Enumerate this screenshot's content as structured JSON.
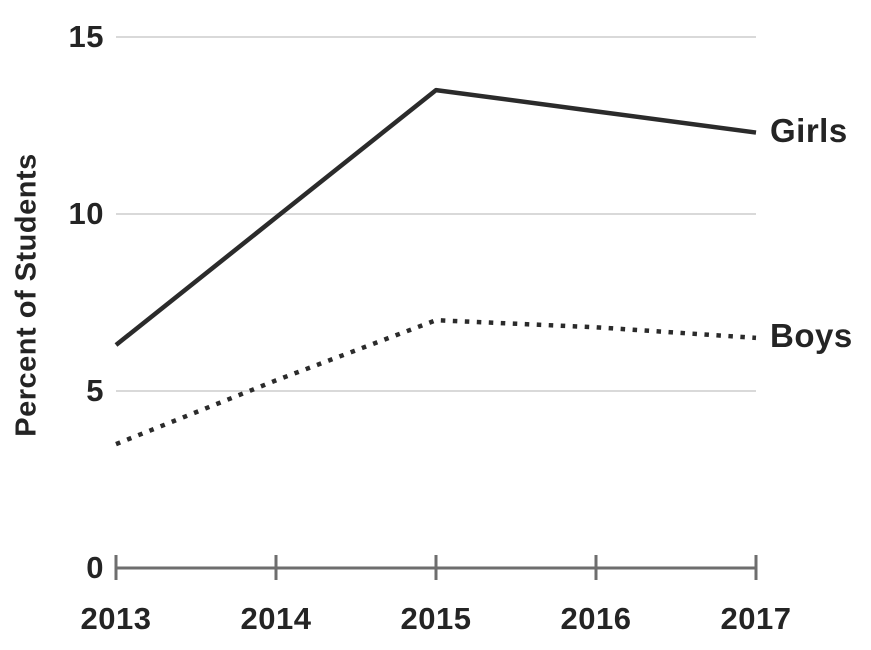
{
  "page": {
    "background": "#ffffff"
  },
  "chart_data": {
    "type": "line",
    "title": "",
    "xlabel": "",
    "ylabel": "Percent of Students",
    "categories": [
      "2013",
      "2014",
      "2015",
      "2016",
      "2017"
    ],
    "yticks": [
      0,
      5,
      10,
      15
    ],
    "ylim": [
      0,
      15
    ],
    "grid": "horizontal-light",
    "legend_position": "right-end-of-line-labels",
    "series": [
      {
        "name": "Girls",
        "style": "solid",
        "values": [
          6.3,
          9.9,
          13.5,
          12.9,
          12.3
        ]
      },
      {
        "name": "Boys",
        "style": "dotted",
        "values": [
          3.5,
          5.3,
          7.0,
          6.8,
          6.5
        ]
      }
    ],
    "colors": {
      "line": "#2b2b2b",
      "grid": "#d9d9d9",
      "axis": "#6e6e6e",
      "text": "#242424",
      "background": "#ffffff"
    }
  }
}
